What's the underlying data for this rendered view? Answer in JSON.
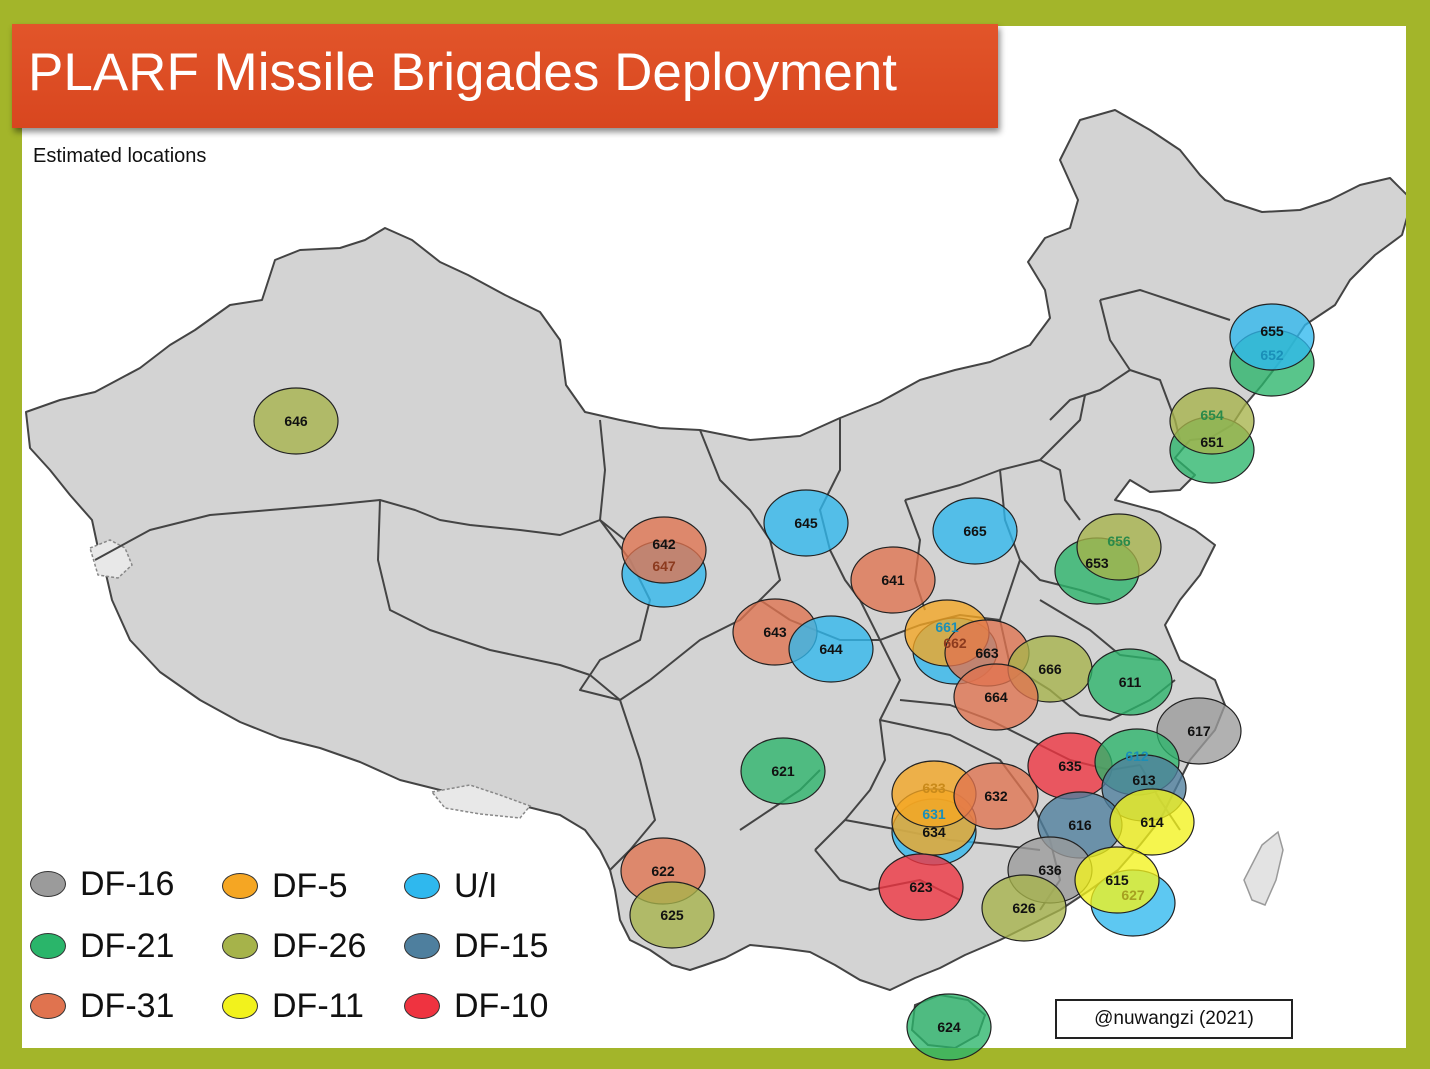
{
  "title": "PLARF Missile Brigades Deployment",
  "subtitle": "Estimated locations",
  "credit": "@nuwangzi (2021)",
  "colors": {
    "DF-16": "#9b9b9b",
    "DF-5": "#f5a623",
    "U/I": "#2fb8ee",
    "DF-21": "#2ab56a",
    "DF-26": "#a6b34a",
    "DF-15": "#4e7f9e",
    "DF-31": "#e0734f",
    "DF-11": "#f2f21c",
    "DF-10": "#ef3340"
  },
  "legend": [
    {
      "label": "DF-16",
      "type": "DF-16"
    },
    {
      "label": "DF-5",
      "type": "DF-5"
    },
    {
      "label": "U/I",
      "type": "U/I"
    },
    {
      "label": "DF-21",
      "type": "DF-21"
    },
    {
      "label": "DF-26",
      "type": "DF-26"
    },
    {
      "label": "DF-15",
      "type": "DF-15"
    },
    {
      "label": "DF-31",
      "type": "DF-31"
    },
    {
      "label": "DF-11",
      "type": "DF-11"
    },
    {
      "label": "DF-10",
      "type": "DF-10"
    }
  ],
  "brigades": [
    {
      "id": "646",
      "type": "DF-26"
    },
    {
      "id": "655",
      "type": "U/I"
    },
    {
      "id": "652",
      "type": "DF-21"
    },
    {
      "id": "654",
      "type": "DF-26"
    },
    {
      "id": "651",
      "type": "DF-21"
    },
    {
      "id": "642",
      "type": "DF-31"
    },
    {
      "id": "647",
      "type": "U/I"
    },
    {
      "id": "645",
      "type": "U/I"
    },
    {
      "id": "665",
      "type": "U/I"
    },
    {
      "id": "656",
      "type": "DF-26"
    },
    {
      "id": "653",
      "type": "DF-21"
    },
    {
      "id": "641",
      "type": "DF-31"
    },
    {
      "id": "643",
      "type": "DF-31"
    },
    {
      "id": "644",
      "type": "U/I"
    },
    {
      "id": "661",
      "type": "DF-5"
    },
    {
      "id": "662",
      "type": "U/I"
    },
    {
      "id": "663",
      "type": "DF-31"
    },
    {
      "id": "666",
      "type": "DF-26"
    },
    {
      "id": "611",
      "type": "DF-21"
    },
    {
      "id": "664",
      "type": "DF-31"
    },
    {
      "id": "617",
      "type": "DF-16"
    },
    {
      "id": "621",
      "type": "DF-21"
    },
    {
      "id": "633",
      "type": "DF-5"
    },
    {
      "id": "631",
      "type": "DF-5"
    },
    {
      "id": "634",
      "type": "U/I"
    },
    {
      "id": "632",
      "type": "DF-31"
    },
    {
      "id": "635",
      "type": "DF-10"
    },
    {
      "id": "612",
      "type": "DF-21"
    },
    {
      "id": "613",
      "type": "DF-15"
    },
    {
      "id": "616",
      "type": "DF-15"
    },
    {
      "id": "614",
      "type": "DF-11"
    },
    {
      "id": "636",
      "type": "DF-16"
    },
    {
      "id": "627",
      "type": "U/I"
    },
    {
      "id": "615",
      "type": "DF-11"
    },
    {
      "id": "623",
      "type": "DF-10"
    },
    {
      "id": "626",
      "type": "DF-26"
    },
    {
      "id": "622",
      "type": "DF-31"
    },
    {
      "id": "625",
      "type": "DF-26"
    },
    {
      "id": "624",
      "type": "DF-21"
    }
  ]
}
